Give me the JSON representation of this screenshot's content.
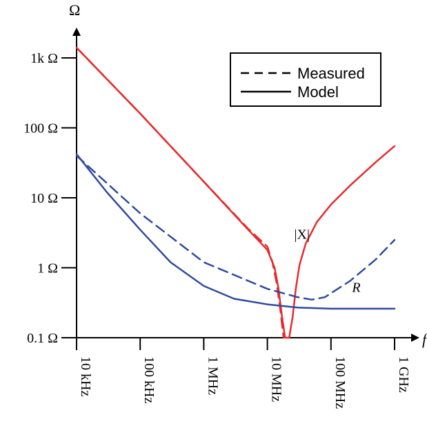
{
  "chart_data": {
    "type": "line",
    "x_scale": "log",
    "y_scale": "log",
    "ylabel": "Ω",
    "xlabel": "f",
    "x_ticks": [
      {
        "value": 10000,
        "label": "10 kHz"
      },
      {
        "value": 100000,
        "label": "100 kHz"
      },
      {
        "value": 1000000,
        "label": "1 MHz"
      },
      {
        "value": 10000000,
        "label": "10 MHz"
      },
      {
        "value": 100000000,
        "label": "100 MHz"
      },
      {
        "value": 1000000000,
        "label": "1 GHz"
      }
    ],
    "y_ticks": [
      {
        "value": 0.1,
        "label": "0.1 Ω"
      },
      {
        "value": 1,
        "label": "1 Ω"
      },
      {
        "value": 10,
        "label": "10 Ω"
      },
      {
        "value": 100,
        "label": "100 Ω"
      },
      {
        "value": 1000,
        "label": "1k Ω"
      }
    ],
    "xlim": [
      10000,
      1000000000
    ],
    "ylim": [
      0.1,
      2500
    ],
    "legend": {
      "placement": "top-right",
      "entries": [
        {
          "label": "Measured",
          "style": "dashed"
        },
        {
          "label": "Model",
          "style": "solid"
        }
      ]
    },
    "annotations": [
      {
        "text": "|X|",
        "x": 35000000,
        "y": 2.6,
        "italic": false
      },
      {
        "text": "R",
        "x": 250000000,
        "y": 0.45,
        "italic": true
      }
    ],
    "colors": {
      "reactance": "#e8282b",
      "resistance": "#2e4a9e",
      "axis": "#000000"
    },
    "series": [
      {
        "quantity": "X",
        "kind": "Model",
        "color": "#e8282b",
        "style": "solid",
        "points": [
          [
            10000,
            1400
          ],
          [
            100000,
            160
          ],
          [
            1000000,
            17
          ],
          [
            5000000,
            3.5
          ],
          [
            10000000,
            1.8
          ],
          [
            13000000,
            1.0
          ],
          [
            15000000,
            0.5
          ],
          [
            17000000,
            0.2
          ],
          [
            19000000,
            0.1
          ],
          [
            22000000,
            0.1
          ],
          [
            25000000,
            0.2
          ],
          [
            28000000,
            0.5
          ],
          [
            32000000,
            1.1
          ],
          [
            40000000,
            2.2
          ],
          [
            60000000,
            4.5
          ],
          [
            100000000,
            8
          ],
          [
            200000000,
            15
          ],
          [
            500000000,
            32
          ],
          [
            1000000000,
            55
          ]
        ]
      },
      {
        "quantity": "X",
        "kind": "Measured",
        "color": "#e8282b",
        "style": "dashed",
        "points": [
          [
            10000,
            1400
          ],
          [
            100000,
            160
          ],
          [
            1000000,
            17
          ],
          [
            5000000,
            3.6
          ],
          [
            10000000,
            2.0
          ],
          [
            12000000,
            1.2
          ],
          [
            14000000,
            0.6
          ],
          [
            16000000,
            0.25
          ],
          [
            18000000,
            0.1
          ]
        ]
      },
      {
        "quantity": "R",
        "kind": "Model",
        "color": "#2e4a9e",
        "style": "solid",
        "points": [
          [
            10000,
            42
          ],
          [
            30000,
            12
          ],
          [
            100000,
            3.5
          ],
          [
            300000,
            1.2
          ],
          [
            1000000,
            0.55
          ],
          [
            3000000,
            0.36
          ],
          [
            10000000,
            0.3
          ],
          [
            30000000,
            0.27
          ],
          [
            100000000,
            0.26
          ],
          [
            300000000,
            0.26
          ],
          [
            1000000000,
            0.26
          ]
        ]
      },
      {
        "quantity": "R",
        "kind": "Measured",
        "color": "#2e4a9e",
        "style": "dashed",
        "points": [
          [
            10000,
            40
          ],
          [
            100000,
            6
          ],
          [
            1000000,
            1.2
          ],
          [
            10000000,
            0.5
          ],
          [
            30000000,
            0.38
          ],
          [
            50000000,
            0.35
          ],
          [
            80000000,
            0.38
          ],
          [
            200000000,
            0.65
          ],
          [
            500000000,
            1.3
          ],
          [
            1000000000,
            2.5
          ]
        ]
      }
    ]
  }
}
